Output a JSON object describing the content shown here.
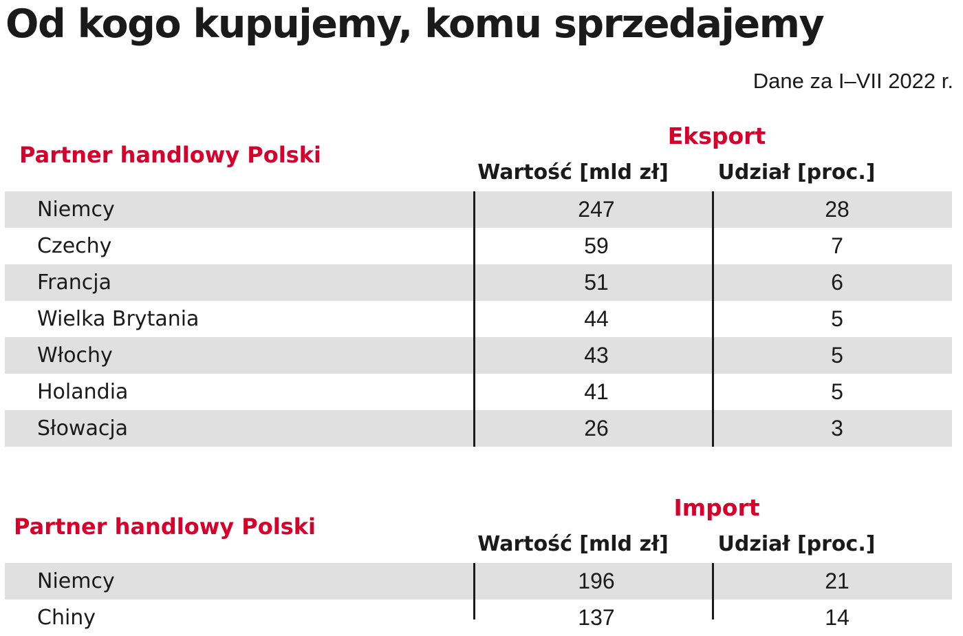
{
  "title": "Od kogo kupujemy, komu sprzedajemy",
  "period": "Dane za I–VII 2022 r.",
  "chart_data": [
    {
      "type": "table",
      "title": "Eksport",
      "row_header": "Partner handlowy Polski",
      "columns": [
        "Wartość [mld zł]",
        "Udział [proc.]"
      ],
      "rows": [
        {
          "country": "Niemcy",
          "value": "247",
          "share": "28"
        },
        {
          "country": "Czechy",
          "value": "59",
          "share": "7"
        },
        {
          "country": "Francja",
          "value": "51",
          "share": "6"
        },
        {
          "country": "Wielka Brytania",
          "value": "44",
          "share": "5"
        },
        {
          "country": "Włochy",
          "value": "43",
          "share": "5"
        },
        {
          "country": "Holandia",
          "value": "41",
          "share": "5"
        },
        {
          "country": "Słowacja",
          "value": "26",
          "share": "3"
        }
      ]
    },
    {
      "type": "table",
      "title": "Import",
      "row_header": "Partner handlowy Polski",
      "columns": [
        "Wartość [mld zł]",
        "Udział [proc.]"
      ],
      "rows": [
        {
          "country": "Niemcy",
          "value": "196",
          "share": "21"
        },
        {
          "country": "Chiny",
          "value": "137",
          "share": "14"
        }
      ]
    }
  ],
  "colors": {
    "accent": "#d6002a",
    "text": "#1a1a1a",
    "row_shade": "#e0e0e1"
  }
}
